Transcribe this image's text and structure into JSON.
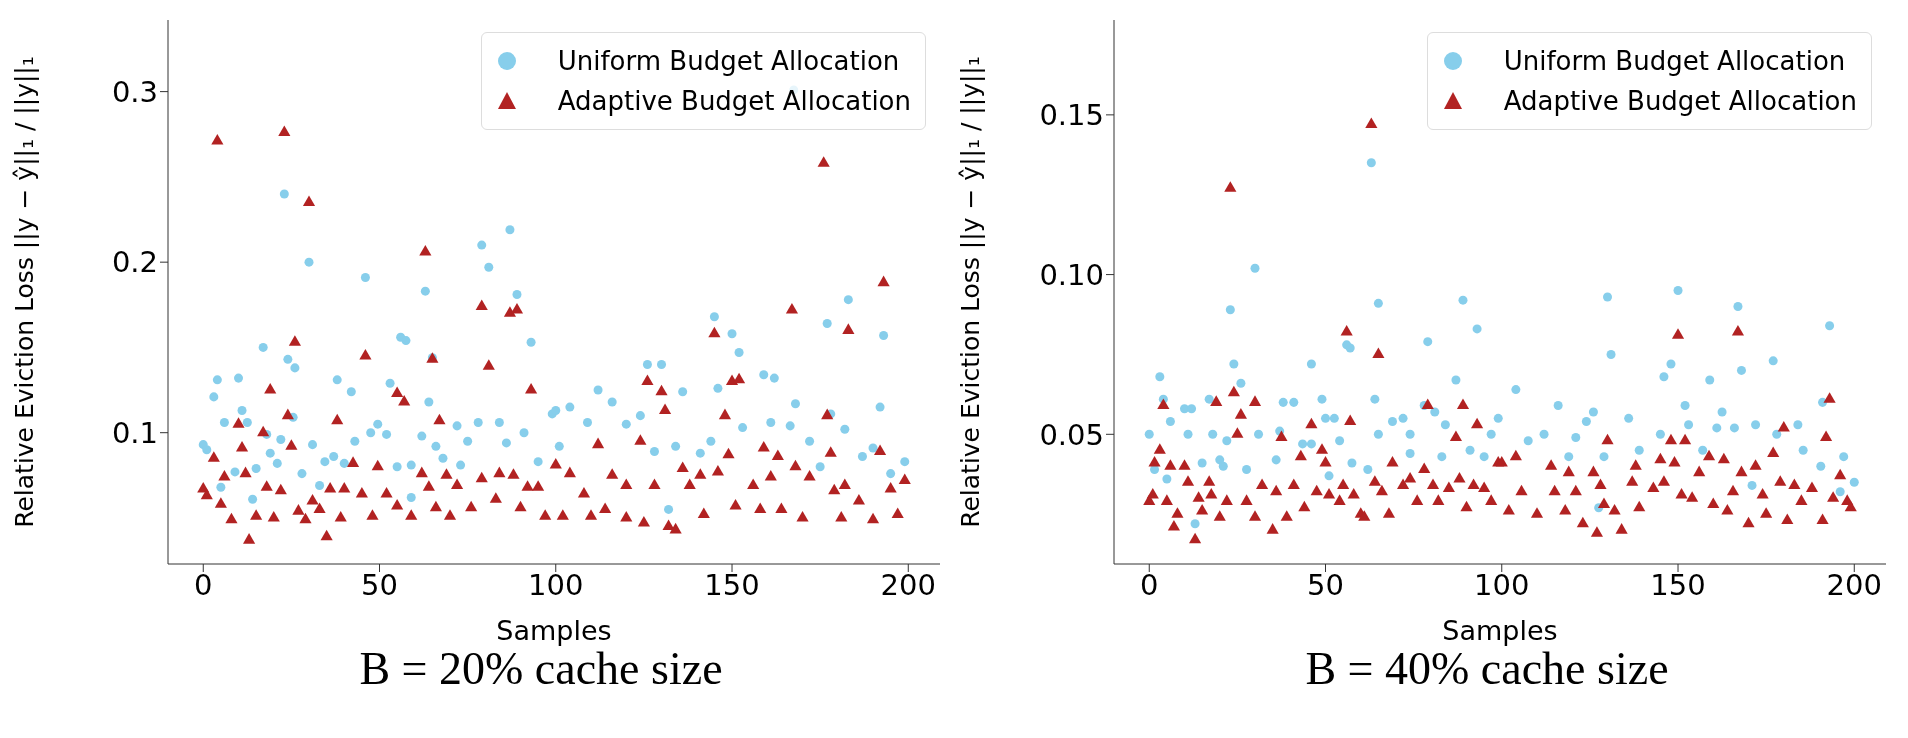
{
  "chart_data": [
    {
      "type": "scatter",
      "title": "B = 20% cache size",
      "xlabel": "Samples",
      "ylabel": "Relative Eviction Loss ||y − ŷ||₁ / ||y||₁",
      "xlim": [
        -10,
        209
      ],
      "ylim": [
        0.023,
        0.342
      ],
      "xticks": [
        0,
        50,
        100,
        150,
        200
      ],
      "yticks": [
        0.1,
        0.2,
        0.3
      ],
      "legend": "top right",
      "series": [
        {
          "name": "Uniform Budget Allocation",
          "color": "#87ceeb",
          "marker": "circle",
          "x": [
            0,
            1,
            3,
            4,
            5,
            6,
            9,
            10,
            11,
            12.5,
            14,
            15,
            17,
            18,
            19,
            21,
            22,
            23,
            24,
            25.5,
            26,
            28,
            30,
            31,
            33,
            34.5,
            37,
            38,
            40,
            42,
            43,
            46,
            47.5,
            49.5,
            52,
            53,
            55,
            56,
            57.5,
            59,
            59,
            62,
            63,
            64,
            65,
            66,
            68,
            72,
            73,
            75,
            78,
            79,
            81,
            84,
            86,
            87,
            89,
            91,
            93,
            95,
            99,
            100,
            101,
            104,
            104.5,
            109,
            112,
            116,
            120,
            124,
            126,
            128,
            130,
            132,
            134,
            136,
            141,
            144,
            145,
            146,
            150,
            152,
            153,
            159,
            161,
            162,
            166.5,
            167.5,
            168,
            172,
            175,
            177,
            178,
            182,
            183,
            187,
            190,
            192,
            193,
            195,
            199
          ],
          "values": [
            0.093,
            0.09,
            0.121,
            0.131,
            0.068,
            0.106,
            0.077,
            0.132,
            0.113,
            0.106,
            0.061,
            0.079,
            0.15,
            0.099,
            0.088,
            0.082,
            0.096,
            0.24,
            0.143,
            0.109,
            0.138,
            0.076,
            0.2,
            0.093,
            0.069,
            0.083,
            0.086,
            0.131,
            0.082,
            0.124,
            0.095,
            0.191,
            0.1,
            0.105,
            0.099,
            0.129,
            0.08,
            0.156,
            0.154,
            0.081,
            0.062,
            0.098,
            0.183,
            0.118,
            0.144,
            0.092,
            0.085,
            0.104,
            0.081,
            0.095,
            0.106,
            0.21,
            0.197,
            0.106,
            0.094,
            0.219,
            0.181,
            0.1,
            0.153,
            0.083,
            0.111,
            0.113,
            0.092,
            0.115,
            null,
            0.106,
            0.125,
            0.118,
            0.105,
            0.11,
            0.14,
            0.089,
            0.14,
            0.055,
            0.092,
            0.124,
            0.088,
            0.095,
            0.168,
            0.126,
            0.158,
            0.147,
            0.103,
            0.134,
            0.106,
            0.132,
            0.104,
            0.301,
            0.117,
            0.095,
            0.08,
            0.164,
            0.111,
            0.102,
            0.178,
            0.086,
            0.091,
            0.115,
            0.157,
            0.076,
            0.083
          ]
        },
        {
          "name": "Adaptive Budget Allocation",
          "color": "#b22222",
          "marker": "triangle",
          "x": [
            0,
            1,
            3,
            4,
            5,
            6,
            8,
            10,
            11,
            12,
            13,
            15,
            17,
            18,
            19,
            20,
            22,
            23,
            24,
            25,
            26,
            27,
            29,
            30,
            31,
            33,
            35,
            36,
            38,
            39,
            40,
            42.5,
            45,
            46,
            48,
            49.5,
            52,
            55,
            55,
            57,
            59,
            62,
            63,
            64,
            65,
            66,
            67,
            69,
            70,
            72,
            76,
            79,
            79,
            81,
            83,
            84,
            87,
            88,
            89,
            90,
            92,
            93,
            95,
            97,
            100,
            102,
            104,
            104.5,
            108,
            110,
            112,
            114,
            116,
            120,
            120,
            124,
            125,
            126,
            128,
            130,
            131,
            132,
            134,
            136,
            138,
            141,
            142,
            145,
            146,
            148,
            149,
            150,
            151,
            152,
            156,
            158,
            159,
            161,
            163,
            164,
            167,
            168,
            170,
            172,
            176,
            177,
            178,
            179,
            181,
            182,
            183,
            186,
            190,
            192,
            193,
            195,
            197,
            199
          ],
          "values": [
            0.067,
            0.063,
            0.085,
            0.271,
            0.058,
            0.074,
            0.049,
            0.105,
            0.091,
            0.076,
            0.037,
            0.051,
            0.1,
            0.068,
            0.125,
            0.05,
            0.066,
            0.276,
            0.11,
            0.092,
            0.153,
            0.054,
            0.049,
            0.235,
            0.06,
            0.055,
            0.039,
            0.067,
            0.107,
            0.05,
            0.067,
            0.082,
            0.064,
            0.145,
            0.051,
            0.08,
            0.064,
            0.057,
            0.123,
            0.118,
            0.051,
            0.076,
            0.206,
            0.068,
            0.143,
            0.056,
            0.107,
            0.075,
            0.051,
            0.069,
            0.056,
            0.073,
            0.174,
            0.139,
            0.061,
            0.076,
            0.17,
            0.075,
            0.172,
            0.056,
            0.068,
            0.125,
            0.068,
            0.051,
            0.081,
            0.051,
            0.076,
            null,
            0.064,
            0.051,
            0.093,
            0.055,
            0.075,
            0.069,
            0.05,
            0.095,
            0.047,
            0.13,
            0.069,
            0.124,
            0.113,
            0.045,
            0.043,
            0.079,
            0.069,
            0.075,
            0.052,
            0.158,
            0.077,
            0.11,
            0.087,
            0.13,
            0.057,
            0.131,
            0.069,
            0.055,
            0.091,
            0.074,
            0.086,
            0.055,
            0.172,
            0.08,
            0.05,
            0.074,
            0.258,
            0.11,
            0.088,
            0.066,
            0.05,
            0.069,
            0.16,
            0.06,
            0.049,
            0.089,
            0.188,
            0.067,
            0.052,
            0.072
          ]
        }
      ]
    },
    {
      "type": "scatter",
      "title": "B = 40% cache size",
      "xlabel": "Samples",
      "ylabel": "Relative Eviction Loss ||y − ŷ||₁ / ||y||₁",
      "xlim": [
        -10,
        209
      ],
      "ylim": [
        0.0094,
        0.1797
      ],
      "xticks": [
        0,
        50,
        100,
        150,
        200
      ],
      "yticks": [
        {
          "value": 0.05,
          "label": "0.05"
        },
        {
          "value": 0.1,
          "label": "0.10"
        },
        {
          "value": 0.15,
          "label": "0.15"
        }
      ],
      "legend": "top right",
      "series": [
        {
          "name": "Uniform Budget Allocation",
          "color": "#87ceeb",
          "marker": "circle",
          "x": [
            0,
            1.5,
            3,
            4,
            5,
            6,
            10,
            11,
            12,
            13,
            15,
            17,
            18,
            20,
            21,
            22,
            23,
            24,
            26,
            27.6,
            30,
            31,
            36,
            37,
            38,
            41,
            43.5,
            46,
            46,
            49,
            50,
            51,
            52.5,
            54,
            56,
            57,
            57.5,
            62,
            63,
            64,
            65,
            65,
            69,
            72,
            74,
            74,
            78,
            79,
            81,
            83,
            84,
            87,
            89,
            91,
            93,
            95,
            97,
            99,
            104,
            107.5,
            112,
            116,
            119,
            121,
            124,
            126,
            127.5,
            129,
            130,
            131,
            136,
            139,
            145,
            146,
            148,
            150,
            152,
            153,
            157,
            159,
            161,
            162.5,
            166,
            167,
            168,
            171,
            172,
            176,
            177,
            178,
            184,
            185.5,
            190.5,
            191,
            193,
            196,
            197,
            200
          ],
          "values": [
            0.05,
            0.039,
            0.068,
            0.061,
            0.036,
            0.054,
            0.058,
            0.05,
            0.058,
            0.022,
            0.041,
            0.061,
            0.05,
            0.042,
            0.04,
            0.048,
            0.089,
            0.072,
            0.066,
            0.039,
            0.102,
            0.05,
            0.042,
            0.051,
            0.06,
            0.06,
            0.047,
            0.072,
            0.047,
            0.061,
            0.055,
            0.037,
            0.055,
            0.048,
            0.078,
            0.077,
            0.041,
            0.039,
            0.135,
            0.061,
            0.091,
            0.05,
            0.054,
            0.055,
            0.05,
            0.044,
            0.059,
            0.079,
            0.057,
            0.043,
            0.053,
            0.067,
            0.092,
            0.045,
            0.083,
            0.043,
            0.05,
            0.055,
            0.064,
            0.048,
            0.05,
            0.059,
            0.043,
            0.049,
            0.054,
            0.057,
            0.027,
            0.043,
            0.093,
            0.075,
            0.055,
            0.045,
            0.05,
            0.068,
            0.072,
            0.095,
            0.059,
            0.053,
            0.045,
            0.067,
            0.052,
            0.057,
            0.052,
            0.09,
            0.07,
            0.034,
            0.053,
            null,
            0.073,
            0.05,
            0.053,
            0.045,
            0.04,
            0.06,
            0.084,
            0.032,
            0.043,
            0.035
          ]
        },
        {
          "name": "Adaptive Budget Allocation",
          "color": "#b22222",
          "marker": "triangle",
          "x": [
            0,
            1,
            1.5,
            3,
            4,
            5,
            6,
            7,
            8,
            10,
            11,
            13,
            14,
            15,
            17,
            17.6,
            19,
            20,
            22,
            23,
            24,
            25,
            26,
            27.6,
            30,
            30,
            32,
            35,
            36,
            37.5,
            39,
            41,
            43,
            44,
            46,
            47.5,
            49,
            50,
            51,
            54,
            55,
            56,
            57,
            58,
            60,
            61,
            63,
            64,
            65,
            66,
            68,
            69,
            72,
            74,
            76,
            78,
            79,
            80.5,
            82,
            85,
            87,
            88,
            89,
            90,
            92,
            93,
            95,
            97,
            99,
            100,
            102,
            104,
            105.6,
            110,
            114,
            115,
            118,
            119,
            121,
            123,
            126,
            127,
            128,
            129,
            130,
            132,
            134,
            137,
            138,
            139,
            143,
            145,
            146,
            148,
            149,
            150,
            151,
            152,
            154,
            156,
            158.8,
            160,
            163,
            164,
            165.6,
            167,
            168,
            170,
            172,
            174,
            175,
            176,
            177,
            179,
            180,
            181,
            183,
            185,
            188,
            191,
            192,
            193,
            194,
            196,
            198,
            199
          ],
          "values": [
            0.029,
            0.031,
            0.041,
            0.045,
            0.059,
            0.029,
            0.04,
            0.021,
            0.025,
            0.04,
            0.035,
            0.017,
            0.03,
            0.026,
            0.035,
            0.031,
            0.06,
            0.024,
            0.029,
            0.127,
            0.063,
            0.05,
            0.056,
            0.029,
            0.06,
            0.024,
            0.034,
            0.02,
            0.032,
            0.049,
            0.024,
            0.034,
            0.043,
            0.027,
            0.053,
            0.032,
            0.045,
            0.041,
            0.031,
            0.029,
            0.034,
            0.082,
            0.054,
            0.031,
            0.025,
            0.024,
            0.147,
            0.035,
            0.075,
            0.032,
            0.025,
            0.041,
            0.034,
            0.036,
            0.029,
            0.039,
            0.059,
            0.034,
            0.029,
            0.033,
            0.049,
            0.036,
            0.059,
            0.027,
            0.034,
            0.053,
            0.033,
            0.029,
            0.041,
            0.041,
            0.026,
            0.043,
            0.032,
            0.025,
            0.04,
            0.032,
            0.026,
            0.038,
            0.032,
            0.022,
            0.038,
            0.019,
            0.034,
            0.028,
            0.048,
            0.026,
            0.02,
            0.035,
            0.04,
            0.027,
            0.033,
            0.042,
            0.035,
            0.048,
            0.041,
            0.081,
            0.031,
            0.048,
            0.03,
            0.038,
            0.043,
            0.028,
            0.042,
            0.026,
            0.032,
            0.082,
            0.038,
            0.022,
            0.04,
            0.031,
            0.025,
            null,
            0.044,
            0.035,
            0.052,
            0.023,
            0.034,
            0.029,
            0.033,
            0.023,
            0.049,
            0.061,
            0.03,
            0.037,
            0.029,
            0.027
          ]
        }
      ]
    }
  ]
}
